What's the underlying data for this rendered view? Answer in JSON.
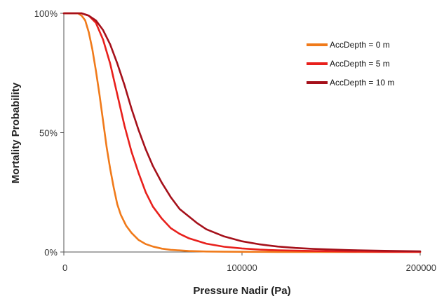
{
  "chart_data": {
    "type": "line",
    "title": "",
    "xlabel": "Pressure Nadir (Pa)",
    "ylabel": "Mortality Probability",
    "xlim": [
      0,
      200000
    ],
    "ylim": [
      0,
      1
    ],
    "x_ticks": [
      {
        "value": 0,
        "label": "0"
      },
      {
        "value": 100000,
        "label": "100000"
      },
      {
        "value": 200000,
        "label": "200000"
      }
    ],
    "y_ticks": [
      {
        "value": 0,
        "label": "0%"
      },
      {
        "value": 0.5,
        "label": "50%"
      },
      {
        "value": 1,
        "label": "100%"
      }
    ],
    "grid": false,
    "legend_position": "top-right",
    "series": [
      {
        "name": "AccDepth = 0 m",
        "color": "#f07a1a",
        "x": [
          0,
          5000,
          8000,
          10000,
          12000,
          14000,
          16000,
          18000,
          20000,
          22000,
          24000,
          26000,
          28000,
          30000,
          32000,
          35000,
          38000,
          42000,
          46000,
          50000,
          55000,
          60000,
          70000,
          80000,
          90000,
          100000,
          120000,
          140000,
          160000,
          180000,
          200000
        ],
        "y": [
          1.0,
          1.0,
          1.0,
          0.99,
          0.97,
          0.92,
          0.85,
          0.76,
          0.66,
          0.55,
          0.44,
          0.35,
          0.27,
          0.2,
          0.155,
          0.11,
          0.08,
          0.05,
          0.033,
          0.023,
          0.014,
          0.009,
          0.004,
          0.002,
          0.0012,
          0.0008,
          0.0004,
          0.0002,
          0.0001,
          0.0,
          0.0
        ]
      },
      {
        "name": "AccDepth = 5 m",
        "color": "#e8201c",
        "x": [
          0,
          5000,
          10000,
          14000,
          18000,
          22000,
          26000,
          30000,
          34000,
          38000,
          42000,
          46000,
          50000,
          55000,
          60000,
          65000,
          70000,
          80000,
          90000,
          100000,
          110000,
          120000,
          140000,
          160000,
          180000,
          200000
        ],
        "y": [
          1.0,
          1.0,
          1.0,
          0.99,
          0.96,
          0.89,
          0.79,
          0.66,
          0.53,
          0.42,
          0.33,
          0.25,
          0.19,
          0.14,
          0.1,
          0.076,
          0.058,
          0.035,
          0.022,
          0.015,
          0.01,
          0.007,
          0.004,
          0.002,
          0.001,
          0.0005
        ]
      },
      {
        "name": "AccDepth = 10 m",
        "color": "#a5101a",
        "x": [
          0,
          10000,
          14000,
          18000,
          22000,
          26000,
          30000,
          34000,
          38000,
          42000,
          46000,
          50000,
          55000,
          60000,
          65000,
          70000,
          75000,
          80000,
          90000,
          100000,
          110000,
          120000,
          130000,
          140000,
          160000,
          180000,
          200000
        ],
        "y": [
          1.0,
          1.0,
          0.99,
          0.97,
          0.93,
          0.87,
          0.79,
          0.7,
          0.6,
          0.51,
          0.43,
          0.36,
          0.29,
          0.23,
          0.18,
          0.15,
          0.12,
          0.095,
          0.065,
          0.045,
          0.032,
          0.023,
          0.017,
          0.013,
          0.008,
          0.005,
          0.003
        ]
      }
    ]
  }
}
